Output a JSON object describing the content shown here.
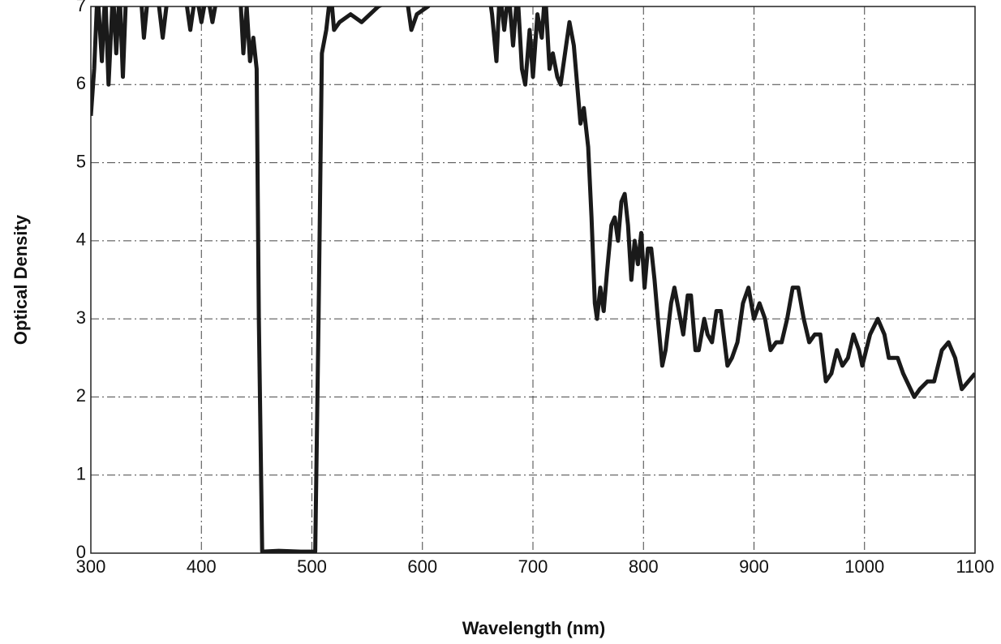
{
  "chart_data": {
    "type": "line",
    "xlabel": "Wavelength (nm)",
    "ylabel": "Optical Density",
    "xlim": [
      300,
      1100
    ],
    "xticks": [
      300,
      400,
      500,
      600,
      700,
      800,
      900,
      1000,
      1100
    ],
    "ylim": [
      0,
      7
    ],
    "yticks": [
      0,
      1,
      2,
      3,
      4,
      5,
      6,
      7
    ],
    "grid": true,
    "color": "#1a1a1a",
    "x": [
      300,
      303,
      306,
      310,
      313,
      316,
      320,
      323,
      326,
      329,
      332,
      345,
      348,
      352,
      360,
      365,
      370,
      385,
      390,
      395,
      400,
      405,
      410,
      415,
      435,
      438,
      441,
      444,
      447,
      450,
      452,
      455,
      470,
      490,
      503,
      506,
      509,
      513,
      517,
      520,
      525,
      535,
      545,
      560,
      575,
      585,
      590,
      595,
      605,
      615,
      660,
      663,
      667,
      670,
      674,
      678,
      682,
      686,
      690,
      693,
      697,
      700,
      704,
      708,
      711,
      715,
      718,
      722,
      725,
      730,
      733,
      737,
      740,
      743,
      746,
      750,
      753,
      756,
      758,
      761,
      764,
      767,
      771,
      774,
      777,
      780,
      783,
      786,
      789,
      792,
      795,
      798,
      801,
      804,
      807,
      810,
      813,
      817,
      820,
      825,
      828,
      832,
      836,
      840,
      843,
      847,
      850,
      855,
      858,
      862,
      866,
      870,
      876,
      880,
      885,
      890,
      895,
      900,
      905,
      910,
      915,
      920,
      925,
      930,
      935,
      940,
      945,
      950,
      955,
      960,
      965,
      970,
      975,
      980,
      985,
      990,
      995,
      998,
      1005,
      1012,
      1018,
      1022,
      1030,
      1035,
      1045,
      1050,
      1057,
      1063,
      1070,
      1076,
      1082,
      1088,
      1094,
      1100
    ],
    "values": [
      5.6,
      6.2,
      7.2,
      6.3,
      7.2,
      6.0,
      7.2,
      6.4,
      7.2,
      6.1,
      7.2,
      7.2,
      6.6,
      7.2,
      7.2,
      6.6,
      7.2,
      7.2,
      6.7,
      7.2,
      6.8,
      7.2,
      6.8,
      7.2,
      7.2,
      6.4,
      7.0,
      6.3,
      6.6,
      6.2,
      3,
      0.02,
      0.03,
      0.02,
      0.02,
      3,
      6.4,
      6.7,
      7.2,
      6.7,
      6.8,
      6.9,
      6.8,
      7.0,
      7.1,
      7.2,
      6.7,
      6.9,
      7.0,
      7.2,
      7.2,
      6.9,
      6.3,
      7.2,
      6.7,
      7.2,
      6.5,
      7.2,
      6.2,
      6.0,
      6.7,
      6.1,
      6.9,
      6.6,
      7.2,
      6.2,
      6.4,
      6.1,
      6.0,
      6.5,
      6.8,
      6.5,
      6.0,
      5.5,
      5.7,
      5.2,
      4.3,
      3.2,
      3.0,
      3.4,
      3.1,
      3.6,
      4.2,
      4.3,
      4.0,
      4.5,
      4.6,
      4.2,
      3.5,
      4.0,
      3.7,
      4.1,
      3.4,
      3.9,
      3.9,
      3.5,
      3.0,
      2.4,
      2.6,
      3.2,
      3.4,
      3.1,
      2.8,
      3.3,
      3.3,
      2.6,
      2.6,
      3.0,
      2.8,
      2.7,
      3.1,
      3.1,
      2.4,
      2.5,
      2.7,
      3.2,
      3.4,
      3.0,
      3.2,
      3.0,
      2.6,
      2.7,
      2.7,
      3.0,
      3.4,
      3.4,
      3.0,
      2.7,
      2.8,
      2.8,
      2.2,
      2.3,
      2.6,
      2.4,
      2.5,
      2.8,
      2.6,
      2.4,
      2.8,
      3.0,
      2.8,
      2.5,
      2.5,
      2.3,
      2.0,
      2.1,
      2.2,
      2.2,
      2.6,
      2.7,
      2.5,
      2.1,
      2.2,
      2.3
    ]
  }
}
